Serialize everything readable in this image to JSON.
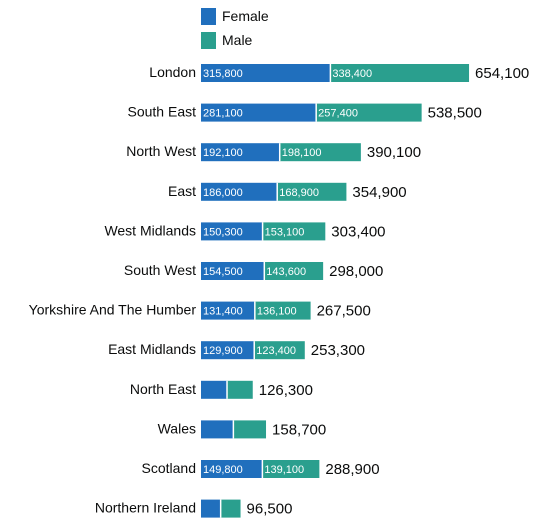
{
  "chart_data": {
    "type": "bar",
    "orientation": "horizontal",
    "stacked": true,
    "legend_position": "top",
    "grid": false,
    "colors": {
      "Female": "#206fbd",
      "Male": "#2a9f8e"
    },
    "legend": [
      "Female",
      "Male"
    ],
    "categories": [
      "London",
      "South East",
      "North West",
      "East",
      "West Midlands",
      "South West",
      "Yorkshire And The Humber",
      "East Midlands",
      "North East",
      "Wales",
      "Scotland",
      "Northern Ireland"
    ],
    "series": [
      {
        "name": "Female",
        "values": [
          315800,
          281100,
          192100,
          186000,
          150300,
          154500,
          131400,
          129900,
          63500,
          79000,
          149800,
          48000
        ],
        "labels": [
          "315,800",
          "281,100",
          "192,100",
          "186,000",
          "150,300",
          "154,500",
          "131,400",
          "129,900",
          "",
          "",
          "149,800",
          ""
        ]
      },
      {
        "name": "Male",
        "values": [
          338400,
          257400,
          198100,
          168900,
          153100,
          143600,
          136100,
          123400,
          62800,
          79700,
          139100,
          48500
        ],
        "labels": [
          "338,400",
          "257,400",
          "198,100",
          "168,900",
          "153,100",
          "143,600",
          "136,100",
          "123,400",
          "",
          "",
          "139,100",
          ""
        ]
      }
    ],
    "totals": [
      654100,
      538500,
      390100,
      354900,
      303400,
      298000,
      267500,
      253300,
      126300,
      158700,
      288900,
      96500
    ],
    "total_labels": [
      "654,100",
      "538,500",
      "390,100",
      "354,900",
      "303,400",
      "298,000",
      "267,500",
      "253,300",
      "126,300",
      "158,700",
      "288,900",
      "96,500"
    ]
  }
}
